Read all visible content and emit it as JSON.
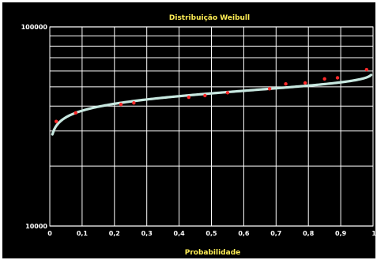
{
  "chart_data": {
    "type": "scatter",
    "title": "Distribuição Weibull",
    "xlabel": "Probabilidade",
    "ylabel": "",
    "x_scale": "linear",
    "y_scale": "log",
    "xlim": [
      0,
      1
    ],
    "ylim": [
      10000,
      100000
    ],
    "x_ticks": [
      0,
      0.1,
      0.2,
      0.3,
      0.4,
      0.5,
      0.6,
      0.7,
      0.8,
      0.9,
      1
    ],
    "x_tick_labels": [
      "0",
      "0,1",
      "0,2",
      "0,3",
      "0,4",
      "0,5",
      "0,6",
      "0,7",
      "0,8",
      "0,9",
      "1"
    ],
    "y_tick_labels": [
      "100000",
      "10000"
    ],
    "grid": true,
    "colors": {
      "background": "#000000",
      "grid": "#ffffff",
      "curve": "#c8e8e0",
      "points": "#ff2a2a",
      "title": "#ffee55",
      "xlabel": "#ffee55",
      "ticks": "#ffffff"
    },
    "series": [
      {
        "kind": "points",
        "points": [
          {
            "x": 0.02,
            "y": 33500
          },
          {
            "x": 0.08,
            "y": 37000
          },
          {
            "x": 0.22,
            "y": 40800
          },
          {
            "x": 0.26,
            "y": 41500
          },
          {
            "x": 0.43,
            "y": 44300
          },
          {
            "x": 0.48,
            "y": 45200
          },
          {
            "x": 0.55,
            "y": 46700
          },
          {
            "x": 0.68,
            "y": 48900
          },
          {
            "x": 0.73,
            "y": 51700
          },
          {
            "x": 0.79,
            "y": 52300
          },
          {
            "x": 0.85,
            "y": 54800
          },
          {
            "x": 0.89,
            "y": 55500
          },
          {
            "x": 0.98,
            "y": 61000
          }
        ]
      },
      {
        "kind": "fit-curve",
        "shape": 9.4,
        "scale": 48200
      }
    ]
  }
}
